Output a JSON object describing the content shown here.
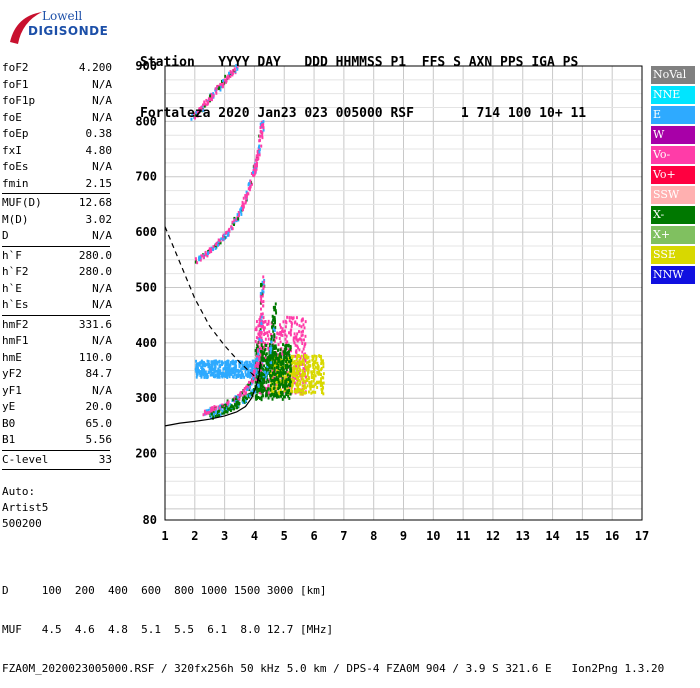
{
  "logo": {
    "line1": "Lowell",
    "line2": "DIGISONDE"
  },
  "header": {
    "line1": "Station   YYYY DAY   DDD HHMMSS P1  FFS S AXN PPS IGA PS",
    "line2": "Fortaleza 2020 Jan23 023 005000 RSF      1 714 100 10+ 11"
  },
  "params": [
    {
      "label": "foF2",
      "value": "4.200"
    },
    {
      "label": "foF1",
      "value": "N/A"
    },
    {
      "label": "foF1p",
      "value": "N/A"
    },
    {
      "label": "foE",
      "value": "N/A"
    },
    {
      "label": "foEp",
      "value": "0.38"
    },
    {
      "label": "fxI",
      "value": "4.80"
    },
    {
      "label": "foEs",
      "value": "N/A"
    },
    {
      "label": "fmin",
      "value": "2.15"
    },
    {
      "sep": true
    },
    {
      "label": "MUF(D)",
      "value": "12.68"
    },
    {
      "label": "M(D)",
      "value": "3.02"
    },
    {
      "label": "D",
      "value": "N/A"
    },
    {
      "sep": true
    },
    {
      "label": "h`F",
      "value": "280.0"
    },
    {
      "label": "h`F2",
      "value": "280.0"
    },
    {
      "label": "h`E",
      "value": "N/A"
    },
    {
      "label": "h`Es",
      "value": "N/A"
    },
    {
      "sep": true
    },
    {
      "label": "hmF2",
      "value": "331.6"
    },
    {
      "label": "hmF1",
      "value": "N/A"
    },
    {
      "label": "hmE",
      "value": "110.0"
    },
    {
      "label": "yF2",
      "value": "84.7"
    },
    {
      "label": "yF1",
      "value": "N/A"
    },
    {
      "label": "yE",
      "value": "20.0"
    },
    {
      "label": "B0",
      "value": "65.0"
    },
    {
      "label": "B1",
      "value": "5.56"
    },
    {
      "sep": true
    },
    {
      "label": "C-level",
      "value": "33"
    },
    {
      "sep": true
    }
  ],
  "auto": [
    "Auto:",
    "Artist5",
    "500200"
  ],
  "legend": [
    {
      "label": "NoVal",
      "color": "#808080"
    },
    {
      "label": "NNE",
      "color": "#00e5ff"
    },
    {
      "label": "E",
      "color": "#2eaaff"
    },
    {
      "label": "W",
      "color": "#a800a8"
    },
    {
      "label": "Vo-",
      "color": "#ff3ca8"
    },
    {
      "label": "Vo+",
      "color": "#ff0040"
    },
    {
      "label": "SSW",
      "color": "#ffb0b0"
    },
    {
      "label": "X-",
      "color": "#007800"
    },
    {
      "label": "X+",
      "color": "#80c060"
    },
    {
      "label": "SSE",
      "color": "#d8d800"
    },
    {
      "label": "NNW",
      "color": "#1010e0"
    }
  ],
  "footer": [
    "D     100  200  400  600  800 1000 1500 3000 [km]",
    "MUF   4.5  4.6  4.8  5.1  5.5  6.1  8.0 12.7 [MHz]",
    "FZA0M_2020023005000.RSF / 320fx256h 50 kHz 5.0 km / DPS-4 FZA0M 904 / 3.9 S 321.6 E   Ion2Png 1.3.20"
  ],
  "chart_data": {
    "type": "scatter",
    "xlim": [
      1,
      17
    ],
    "ylim": [
      80,
      900
    ],
    "x_ticks": [
      1,
      2,
      3,
      4,
      5,
      6,
      7,
      8,
      9,
      10,
      11,
      12,
      13,
      14,
      15,
      16,
      17
    ],
    "y_ticks": [
      80,
      200,
      300,
      400,
      500,
      600,
      700,
      800,
      900
    ],
    "grid": true,
    "traces": [
      {
        "name": "O",
        "color": "#ff3ca8",
        "points": [
          [
            2.25,
            275
          ],
          [
            2.6,
            282
          ],
          [
            3.0,
            290
          ],
          [
            3.4,
            303
          ],
          [
            3.7,
            318
          ],
          [
            3.9,
            335
          ],
          [
            4.05,
            360
          ],
          [
            4.15,
            400
          ],
          [
            4.2,
            460
          ],
          [
            4.25,
            520
          ]
        ]
      },
      {
        "name": "X",
        "color": "#007800",
        "points": [
          [
            2.5,
            270
          ],
          [
            2.9,
            278
          ],
          [
            3.3,
            288
          ],
          [
            3.7,
            302
          ],
          [
            4.0,
            318
          ],
          [
            4.3,
            340
          ],
          [
            4.5,
            370
          ],
          [
            4.6,
            420
          ],
          [
            4.65,
            470
          ]
        ]
      },
      {
        "name": "O2",
        "color": "#ff3ca8",
        "points": [
          [
            2.0,
            550
          ],
          [
            2.4,
            565
          ],
          [
            2.8,
            585
          ],
          [
            3.2,
            610
          ],
          [
            3.5,
            640
          ],
          [
            3.8,
            680
          ],
          [
            4.0,
            720
          ],
          [
            4.15,
            760
          ],
          [
            4.25,
            800
          ]
        ]
      },
      {
        "name": "O3",
        "color": "#ff3ca8",
        "points": [
          [
            1.9,
            810
          ],
          [
            2.2,
            825
          ],
          [
            2.5,
            845
          ],
          [
            2.8,
            865
          ],
          [
            3.1,
            885
          ],
          [
            3.4,
            900
          ]
        ]
      }
    ],
    "spread": [
      {
        "color": "#2eaaff",
        "region": [
          2.0,
          4.3,
          340,
          370
        ]
      },
      {
        "color": "#ff3ca8",
        "region": [
          4.0,
          5.7,
          310,
          450
        ]
      },
      {
        "color": "#d8d800",
        "region": [
          4.5,
          6.3,
          310,
          380
        ]
      },
      {
        "color": "#007800",
        "region": [
          4.0,
          5.2,
          300,
          400
        ]
      }
    ],
    "profile_true": [
      [
        1.0,
        250
      ],
      [
        1.5,
        255
      ],
      [
        2.0,
        258
      ],
      [
        2.5,
        262
      ],
      [
        3.0,
        268
      ],
      [
        3.4,
        275
      ],
      [
        3.7,
        285
      ],
      [
        3.9,
        300
      ],
      [
        4.05,
        320
      ],
      [
        4.15,
        340
      ],
      [
        4.2,
        365
      ]
    ],
    "profile_dashed": [
      [
        1.0,
        610
      ],
      [
        1.5,
        545
      ],
      [
        2.0,
        480
      ],
      [
        2.5,
        430
      ],
      [
        3.0,
        395
      ],
      [
        3.5,
        365
      ],
      [
        3.9,
        345
      ],
      [
        4.1,
        335
      ],
      [
        4.2,
        330
      ]
    ]
  }
}
